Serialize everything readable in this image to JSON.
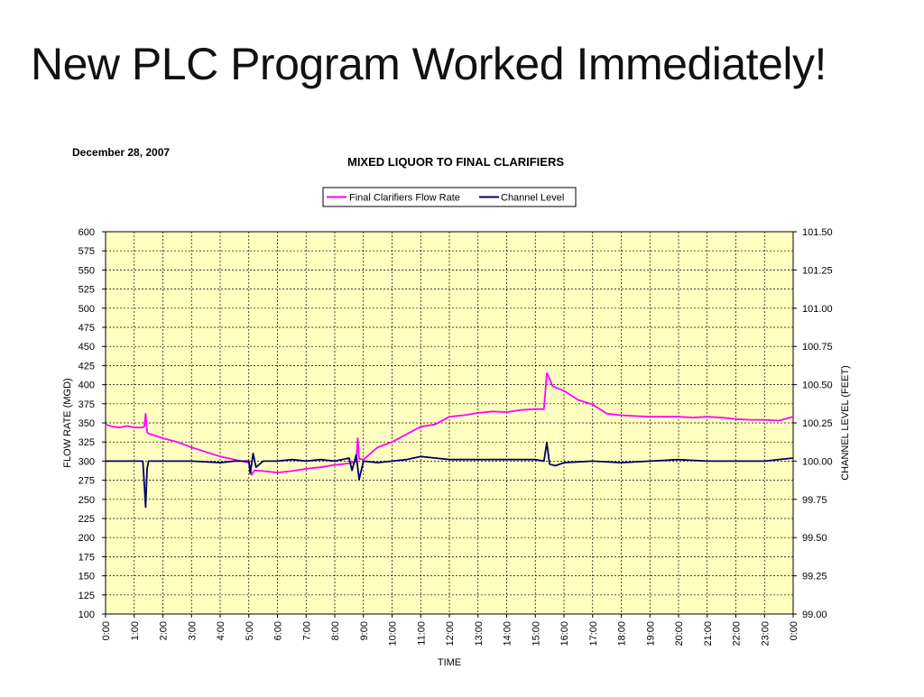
{
  "slide": {
    "title": "New PLC Program Worked Immediately!"
  },
  "chart_data": {
    "type": "line",
    "date_label": "December 28, 2007",
    "title": "MIXED LIQUOR TO FINAL CLARIFIERS",
    "xlabel": "TIME",
    "ylabel_left": "FLOW RATE (MGD)",
    "ylabel_right": "CHANNEL LEVEL (FEET)",
    "x_ticks": [
      "0:00",
      "1:00",
      "2:00",
      "3:00",
      "4:00",
      "5:00",
      "6:00",
      "7:00",
      "8:00",
      "9:00",
      "10:00",
      "11:00",
      "12:00",
      "13:00",
      "14:00",
      "15:00",
      "16:00",
      "17:00",
      "18:00",
      "19:00",
      "20:00",
      "21:00",
      "22:00",
      "23:00",
      "0:00"
    ],
    "x_range_hours": [
      0,
      24
    ],
    "ylim_left": [
      100,
      600
    ],
    "y_ticks_left": [
      "100",
      "125",
      "150",
      "175",
      "200",
      "225",
      "250",
      "275",
      "300",
      "325",
      "350",
      "375",
      "400",
      "425",
      "450",
      "475",
      "500",
      "525",
      "550",
      "575",
      "600"
    ],
    "ylim_right": [
      99.0,
      101.5
    ],
    "y_ticks_right": [
      "99.00",
      "99.25",
      "99.50",
      "99.75",
      "100.00",
      "100.25",
      "100.50",
      "100.75",
      "101.00",
      "101.25",
      "101.50"
    ],
    "grid": true,
    "plot_background": "#FFFFC0",
    "legend_position": "top-center",
    "series": [
      {
        "name": "Final Clarifiers Flow Rate",
        "color": "#FF00FF",
        "axis": "left",
        "x": [
          0,
          0.25,
          0.5,
          0.75,
          1.0,
          1.25,
          1.35,
          1.4,
          1.45,
          1.5,
          1.75,
          2.0,
          2.5,
          3.0,
          3.5,
          4.0,
          4.5,
          5.0,
          5.1,
          5.2,
          5.5,
          6.0,
          6.5,
          7.0,
          7.5,
          8.0,
          8.5,
          8.75,
          8.8,
          8.85,
          9.0,
          9.5,
          10.0,
          10.5,
          11.0,
          11.5,
          12.0,
          12.5,
          13.0,
          13.5,
          14.0,
          14.5,
          15.0,
          15.3,
          15.4,
          15.45,
          15.6,
          16.0,
          16.5,
          17.0,
          17.5,
          18.0,
          18.5,
          19.0,
          19.5,
          20.0,
          20.5,
          21.0,
          21.5,
          22.0,
          22.5,
          23.0,
          23.5,
          24.0
        ],
        "values": [
          348,
          345,
          344,
          346,
          344,
          344,
          345,
          362,
          338,
          336,
          333,
          330,
          325,
          318,
          312,
          306,
          302,
          298,
          282,
          288,
          287,
          285,
          287,
          290,
          292,
          295,
          297,
          299,
          330,
          303,
          302,
          318,
          325,
          335,
          345,
          348,
          358,
          360,
          363,
          365,
          364,
          367,
          368,
          368,
          415,
          412,
          398,
          392,
          380,
          374,
          362,
          360,
          359,
          358,
          358,
          358,
          357,
          358,
          357,
          355,
          354,
          354,
          353,
          358
        ]
      },
      {
        "name": "Channel Level",
        "color": "#000066",
        "axis": "right",
        "x": [
          0,
          0.5,
          1.0,
          1.3,
          1.35,
          1.4,
          1.45,
          1.5,
          2.0,
          3.0,
          4.0,
          4.5,
          5.0,
          5.05,
          5.15,
          5.25,
          5.5,
          6.0,
          6.5,
          7.0,
          7.5,
          8.0,
          8.5,
          8.6,
          8.75,
          8.85,
          9.0,
          9.5,
          10.0,
          10.5,
          11.0,
          11.5,
          12.0,
          13.0,
          14.0,
          15.0,
          15.3,
          15.4,
          15.5,
          15.7,
          16.0,
          17.0,
          18.0,
          19.0,
          20.0,
          21.0,
          22.0,
          23.0,
          24.0
        ],
        "values": [
          100.0,
          100.0,
          100.0,
          100.0,
          99.85,
          99.7,
          99.95,
          100.0,
          100.0,
          100.0,
          99.99,
          100.0,
          100.0,
          99.92,
          100.05,
          99.96,
          100.0,
          100.0,
          100.01,
          100.0,
          100.01,
          100.0,
          100.02,
          99.94,
          100.04,
          99.88,
          100.0,
          99.99,
          100.0,
          100.01,
          100.03,
          100.02,
          100.01,
          100.01,
          100.01,
          100.01,
          100.0,
          100.12,
          99.98,
          99.97,
          99.99,
          100.0,
          99.99,
          100.0,
          100.01,
          100.0,
          100.0,
          100.0,
          100.02
        ]
      }
    ]
  }
}
